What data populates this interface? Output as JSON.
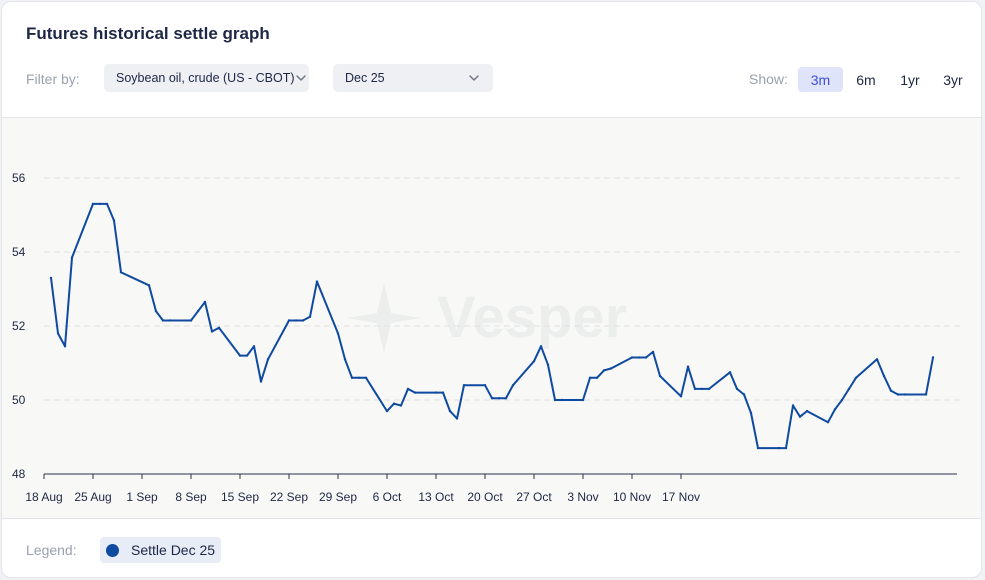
{
  "header": {
    "title": "Futures historical settle graph",
    "filter_label": "Filter by:",
    "commodity_select": "Soybean oil, crude (US - CBOT)",
    "contract_select": "Dec 25",
    "show_label": "Show:",
    "ranges": [
      "3m",
      "6m",
      "1yr",
      "3yr"
    ],
    "active_range": "3m"
  },
  "watermark": "Vesper",
  "legend": {
    "label": "Legend:",
    "item": "Settle Dec 25"
  },
  "colors": {
    "series": "#0f4aa1",
    "accent": "#3f51d6",
    "active_bg": "#dfe4fb"
  },
  "icons": {
    "select_chevron": "chevron-down-icon",
    "watermark_logo": "star-icon"
  },
  "chart_data": {
    "type": "line",
    "title": "",
    "xlabel": "",
    "ylabel": "",
    "ylim": [
      48,
      57.5
    ],
    "yticks": [
      48,
      50,
      52,
      54,
      56
    ],
    "grid": true,
    "xticks": [
      "18 Aug",
      "25 Aug",
      "1 Sep",
      "8 Sep",
      "15 Sep",
      "22 Sep",
      "29 Sep",
      "6 Oct",
      "13 Oct",
      "20 Oct",
      "27 Oct",
      "3 Nov",
      "10 Nov",
      "17 Nov"
    ],
    "x_start": "2025-08-18",
    "series": [
      {
        "name": "Settle Dec 25",
        "points": [
          [
            "2025-08-19",
            53.3
          ],
          [
            "2025-08-20",
            51.8
          ],
          [
            "2025-08-21",
            51.45
          ],
          [
            "2025-08-22",
            53.85
          ],
          [
            "2025-08-25",
            55.3
          ],
          [
            "2025-08-26",
            55.3
          ],
          [
            "2025-08-27",
            55.3
          ],
          [
            "2025-08-28",
            54.85
          ],
          [
            "2025-08-29",
            53.45
          ],
          [
            "2025-09-02",
            53.1
          ],
          [
            "2025-09-03",
            52.4
          ],
          [
            "2025-09-04",
            52.15
          ],
          [
            "2025-09-05",
            52.15
          ],
          [
            "2025-09-08",
            52.15
          ],
          [
            "2025-09-09",
            52.4
          ],
          [
            "2025-09-10",
            52.65
          ],
          [
            "2025-09-11",
            51.85
          ],
          [
            "2025-09-12",
            51.95
          ],
          [
            "2025-09-15",
            51.2
          ],
          [
            "2025-09-16",
            51.2
          ],
          [
            "2025-09-17",
            51.45
          ],
          [
            "2025-09-18",
            50.5
          ],
          [
            "2025-09-19",
            51.1
          ],
          [
            "2025-09-22",
            52.15
          ],
          [
            "2025-09-23",
            52.15
          ],
          [
            "2025-09-24",
            52.15
          ],
          [
            "2025-09-25",
            52.25
          ],
          [
            "2025-09-26",
            53.2
          ],
          [
            "2025-09-29",
            51.8
          ],
          [
            "2025-09-30",
            51.1
          ],
          [
            "2025-10-01",
            50.6
          ],
          [
            "2025-10-02",
            50.6
          ],
          [
            "2025-10-03",
            50.6
          ],
          [
            "2025-10-06",
            49.7
          ],
          [
            "2025-10-07",
            49.9
          ],
          [
            "2025-10-08",
            49.85
          ],
          [
            "2025-10-09",
            50.3
          ],
          [
            "2025-10-10",
            50.2
          ],
          [
            "2025-10-13",
            50.2
          ],
          [
            "2025-10-14",
            50.2
          ],
          [
            "2025-10-15",
            49.7
          ],
          [
            "2025-10-16",
            49.5
          ],
          [
            "2025-10-17",
            50.4
          ],
          [
            "2025-10-20",
            50.4
          ],
          [
            "2025-10-21",
            50.05
          ],
          [
            "2025-10-22",
            50.05
          ],
          [
            "2025-10-23",
            50.05
          ],
          [
            "2025-10-24",
            50.4
          ],
          [
            "2025-10-27",
            51.05
          ],
          [
            "2025-10-28",
            51.45
          ],
          [
            "2025-10-29",
            50.95
          ],
          [
            "2025-10-30",
            50.0
          ],
          [
            "2025-10-31",
            50.0
          ],
          [
            "2025-11-03",
            50.0
          ],
          [
            "2025-11-04",
            50.6
          ],
          [
            "2025-11-05",
            50.6
          ],
          [
            "2025-11-06",
            50.8
          ],
          [
            "2025-11-07",
            50.85
          ],
          [
            "2025-11-10",
            51.15
          ],
          [
            "2025-11-11",
            51.15
          ],
          [
            "2025-11-12",
            51.15
          ],
          [
            "2025-11-13",
            51.3
          ],
          [
            "2025-11-14",
            50.65
          ],
          [
            "2025-11-17",
            50.1
          ],
          [
            "2025-11-18",
            50.9
          ],
          [
            "2025-11-19",
            50.3
          ],
          [
            "2025-11-20",
            50.3
          ],
          [
            "2025-11-21",
            50.3
          ],
          [
            "2025-11-24",
            50.75
          ],
          [
            "2025-11-25",
            50.3
          ],
          [
            "2025-11-26",
            50.15
          ],
          [
            "2025-11-27",
            49.65
          ],
          [
            "2025-11-28",
            48.7
          ],
          [
            "2025-12-01",
            48.7
          ],
          [
            "2025-12-02",
            48.7
          ],
          [
            "2025-12-03",
            49.85
          ],
          [
            "2025-12-04",
            49.55
          ],
          [
            "2025-12-05",
            49.7
          ],
          [
            "2025-12-08",
            49.4
          ],
          [
            "2025-12-09",
            49.75
          ],
          [
            "2025-12-10",
            50.0
          ],
          [
            "2025-12-11",
            50.3
          ],
          [
            "2025-12-12",
            50.6
          ],
          [
            "2025-12-15",
            51.1
          ],
          [
            "2025-12-16",
            50.65
          ],
          [
            "2025-12-17",
            50.25
          ],
          [
            "2025-12-18",
            50.15
          ],
          [
            "2025-12-19",
            50.15
          ],
          [
            "2025-12-22",
            50.15
          ],
          [
            "2025-12-23",
            51.15
          ]
        ]
      }
    ]
  }
}
